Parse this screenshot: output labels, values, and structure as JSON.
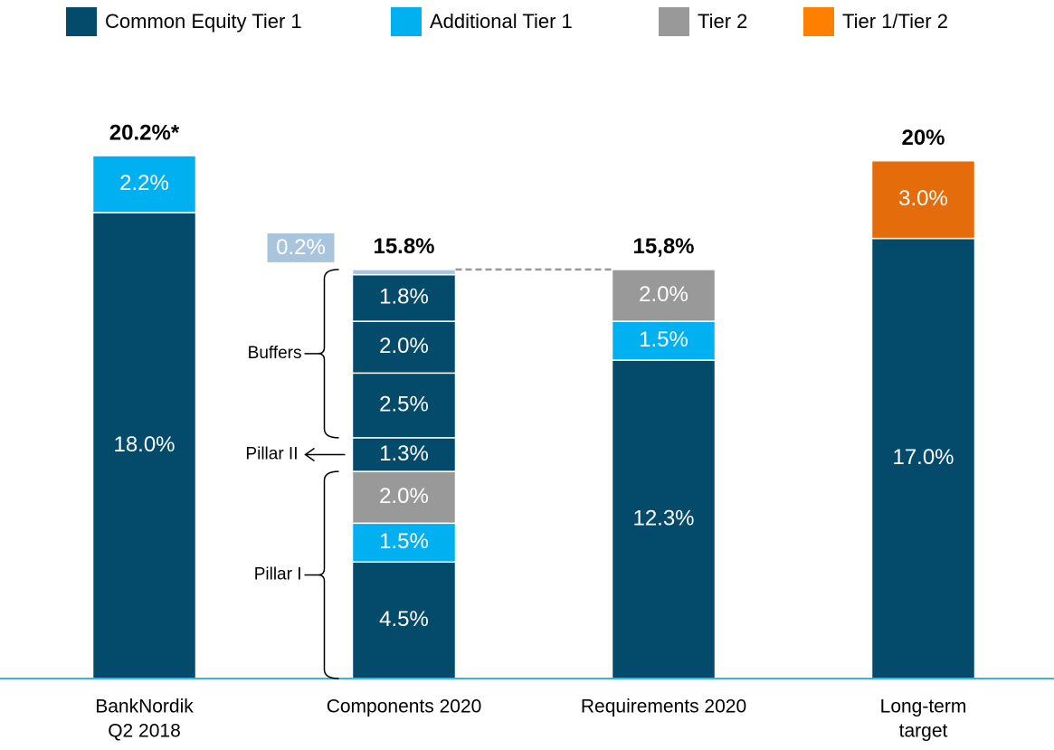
{
  "chart_data": {
    "type": "stacked_bar",
    "series": [
      {
        "name": "Common Equity Tier 1",
        "color": "#034a6b"
      },
      {
        "name": "Additional Tier 1",
        "color": "#00b0f0"
      },
      {
        "name": "Tier 2",
        "color": "#999999"
      },
      {
        "name": "Tier 1/Tier 2",
        "color": "#ff8000"
      }
    ],
    "categories": [
      [
        "BankNordik",
        "Q2 2018"
      ],
      [
        "Components 2020"
      ],
      [
        "Requirements 2020"
      ],
      [
        "Long-term",
        "target"
      ]
    ],
    "totals": [
      "20.2%*",
      "15.8%",
      "15,8%",
      "20%"
    ],
    "bars": [
      {
        "segments": [
          {
            "series": 0,
            "value": 18.0,
            "value_label": "18.0%"
          },
          {
            "series": 1,
            "value": 2.2,
            "value_label": "2.2%"
          }
        ]
      },
      {
        "segments": [
          {
            "series": 0,
            "value": 4.5,
            "value_label": "4.5%"
          },
          {
            "series": 1,
            "value": 1.5,
            "value_label": "1.5%"
          },
          {
            "series": 2,
            "value": 2.0,
            "value_label": "2.0%"
          },
          {
            "series": 0,
            "value": 1.3,
            "value_label": "1.3%"
          },
          {
            "series": 0,
            "value": 2.5,
            "value_label": "2.5%"
          },
          {
            "series": 0,
            "value": 2.0,
            "value_label": "2.0%"
          },
          {
            "series": 0,
            "value": 1.8,
            "value_label": "1.8%"
          },
          {
            "value": 0.2,
            "value_label": "0.2%",
            "color": "#a9c5de"
          }
        ]
      },
      {
        "segments": [
          {
            "series": 0,
            "value": 12.3,
            "value_label": "12.3%"
          },
          {
            "series": 1,
            "value": 1.5,
            "value_label": "1.5%"
          },
          {
            "series": 2,
            "value": 2.0,
            "value_label": "2.0%"
          }
        ]
      },
      {
        "segments": [
          {
            "series": 0,
            "value": 17.0,
            "value_label": "17.0%"
          },
          {
            "series": 3,
            "value": 3.0,
            "value_label": "3.0%",
            "color": "#e46c0a"
          }
        ]
      }
    ],
    "annotations": [
      "Buffers",
      "Pillar II",
      "Pillar I"
    ],
    "ylim": [
      0,
      20.2
    ]
  }
}
